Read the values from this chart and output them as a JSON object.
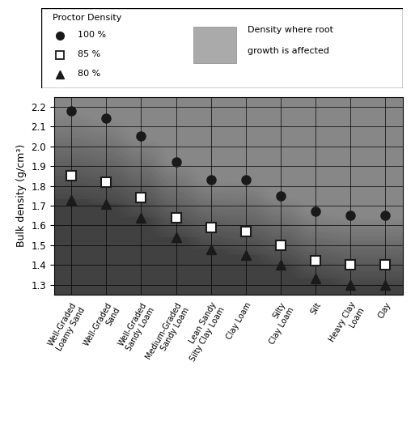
{
  "categories": [
    "Well-Graded\nLoamy Sand",
    "Well-Graded\nSand",
    "Well-Graded\nSandy Loam",
    "Medium-Graded\nSandy Loam",
    "Lean Sandy\nSilty Clay Loam",
    "Clay Loam",
    "Silty\nClay Loam",
    "Silt",
    "Heavy Clay\nLoam",
    "Clay"
  ],
  "pct100": [
    2.18,
    2.14,
    2.05,
    1.92,
    1.83,
    1.83,
    1.75,
    1.67,
    1.65,
    1.65
  ],
  "pct85": [
    1.85,
    1.82,
    1.74,
    1.64,
    1.59,
    1.57,
    1.5,
    1.42,
    1.4,
    1.4
  ],
  "pct80": [
    1.73,
    1.71,
    1.64,
    1.54,
    1.48,
    1.45,
    1.4,
    1.33,
    1.3,
    1.3
  ],
  "ylim": [
    1.25,
    2.25
  ],
  "yticks": [
    1.3,
    1.4,
    1.5,
    1.6,
    1.7,
    1.8,
    1.9,
    2.0,
    2.1,
    2.2
  ],
  "ylabel": "Bulk density (g/cm³)",
  "marker_color": "#1a1a1a",
  "legend_gray": "#aaaaaa",
  "dark_gray_rgb": [
    0.55,
    0.55,
    0.55
  ],
  "light_gray_rgb": [
    0.88,
    0.88,
    0.88
  ]
}
